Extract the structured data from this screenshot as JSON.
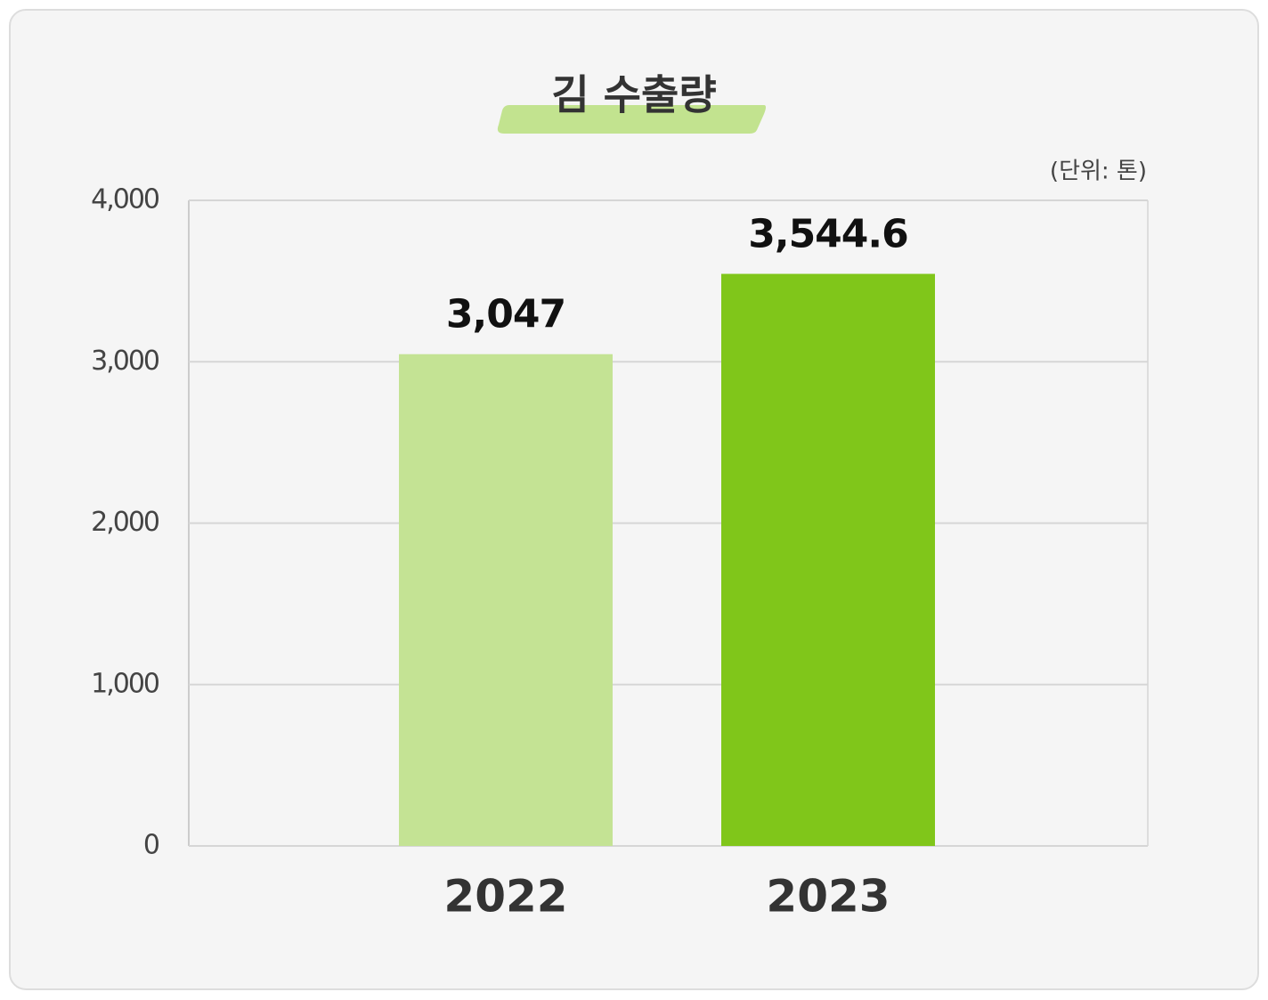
{
  "chart_data": {
    "type": "bar",
    "title": "김 수출량",
    "unit_label": "(단위: 톤)",
    "categories": [
      "2022",
      "2023"
    ],
    "values": [
      3047,
      3544.6
    ],
    "value_labels": [
      "3,047",
      "3,544.6"
    ],
    "colors": [
      "#c4e394",
      "#80c61a"
    ],
    "ylim": [
      0,
      4000
    ],
    "yticks": [
      0,
      {
        "value": 1000,
        "label": "1,000"
      },
      {
        "value": 2000,
        "label": "2,000"
      },
      {
        "value": 3000,
        "label": "3,000"
      },
      {
        "value": 4000,
        "label": "4,000"
      }
    ],
    "grid": true
  }
}
